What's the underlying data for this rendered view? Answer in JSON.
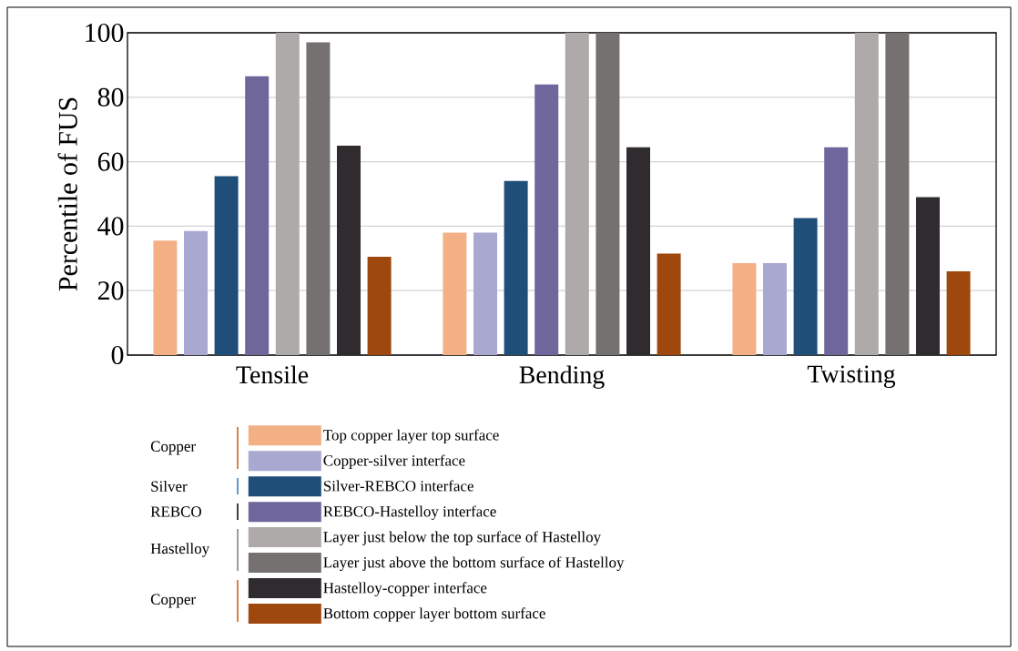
{
  "chart_data": {
    "type": "bar",
    "ylabel": "Percentile of FUS",
    "categories": [
      "Tensile",
      "Bending",
      "Twisting"
    ],
    "series": [
      {
        "name": "Top copper layer top surface",
        "color": "#f3b085",
        "values": [
          35.5,
          38,
          28.5
        ]
      },
      {
        "name": "Copper-silver interface",
        "color": "#a9a8d0",
        "values": [
          38.5,
          38,
          28.5
        ]
      },
      {
        "name": "Silver-REBCO  interface",
        "color": "#1f4e79",
        "values": [
          55.5,
          54,
          42.5
        ]
      },
      {
        "name": "REBCO-Hastelloy  interface",
        "color": "#6f679b",
        "values": [
          86.5,
          84,
          64.5
        ]
      },
      {
        "name": "Layer just below the top surface of Hastelloy",
        "color": "#adaaa9",
        "values": [
          100,
          100,
          100
        ]
      },
      {
        "name": "Layer just above the bottom surface of Hastelloy",
        "color": "#757171",
        "values": [
          97,
          100,
          100
        ]
      },
      {
        "name": "Hastelloy-copper interface",
        "color": "#302b2f",
        "values": [
          65,
          64.5,
          49
        ]
      },
      {
        "name": "Bottom copper layer bottom surface",
        "color": "#9e480e",
        "values": [
          30.5,
          31.5,
          26
        ]
      }
    ],
    "annotations": [
      "Copper",
      "Silver",
      "REBCO",
      "Hastelloy",
      "Copper"
    ],
    "ylim": [
      0,
      100
    ],
    "yticks": [
      0,
      20,
      40,
      60,
      80,
      100
    ],
    "grid": "y",
    "legend": "bottom"
  }
}
